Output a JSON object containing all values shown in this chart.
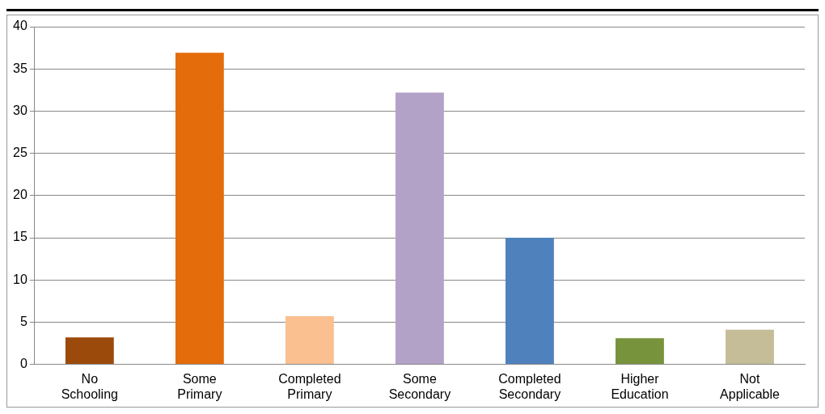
{
  "chart_data": {
    "type": "bar",
    "categories": [
      "No Schooling",
      "Some Primary",
      "Completed Primary",
      "Some Secondary",
      "Completed Secondary",
      "Higher Education",
      "Not Applicable"
    ],
    "values": [
      3.2,
      36.9,
      5.7,
      32.2,
      15.0,
      3.1,
      4.1
    ],
    "colors": [
      "#9c4a0c",
      "#e46c0a",
      "#fac090",
      "#b3a2c7",
      "#4f81bd",
      "#77933c",
      "#c4bd97"
    ],
    "ylim": [
      0,
      40
    ],
    "yticks": [
      0,
      5,
      10,
      15,
      20,
      25,
      30,
      35,
      40
    ],
    "grid": "y",
    "legend": false
  }
}
